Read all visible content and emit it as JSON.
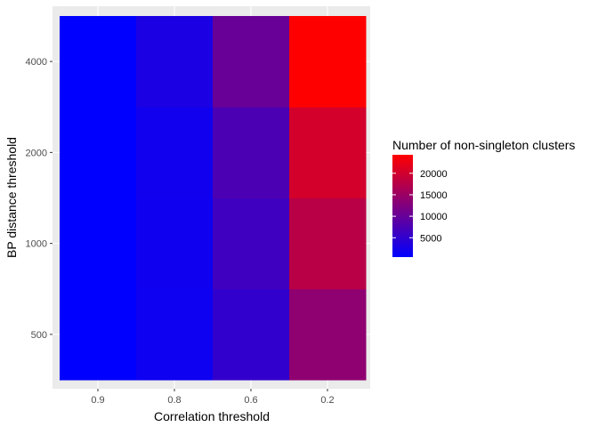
{
  "chart_data": {
    "type": "heatmap",
    "title": "",
    "xlabel": "Correlation threshold",
    "ylabel": "BP distance threshold",
    "x_categories": [
      "0.9",
      "0.8",
      "0.6",
      "0.2"
    ],
    "y_categories": [
      "500",
      "1000",
      "2000",
      "4000"
    ],
    "values": [
      [
        500,
        1800,
        5200,
        13800
      ],
      [
        500,
        1900,
        6500,
        17800
      ],
      [
        500,
        2100,
        7500,
        20200
      ],
      [
        500,
        3000,
        10200,
        24300
      ]
    ],
    "colorbar": {
      "title": "Number of non-singleton clusters",
      "ticks": [
        5000,
        10000,
        15000,
        20000
      ],
      "tick_labels": [
        "5000",
        "10000",
        "15000",
        "20000"
      ],
      "min": 500,
      "max": 24300,
      "low_color": "#0000ff",
      "high_color": "#ff0000"
    },
    "panel_background": "#ebebeb",
    "grid": true,
    "legend_position": "right"
  }
}
